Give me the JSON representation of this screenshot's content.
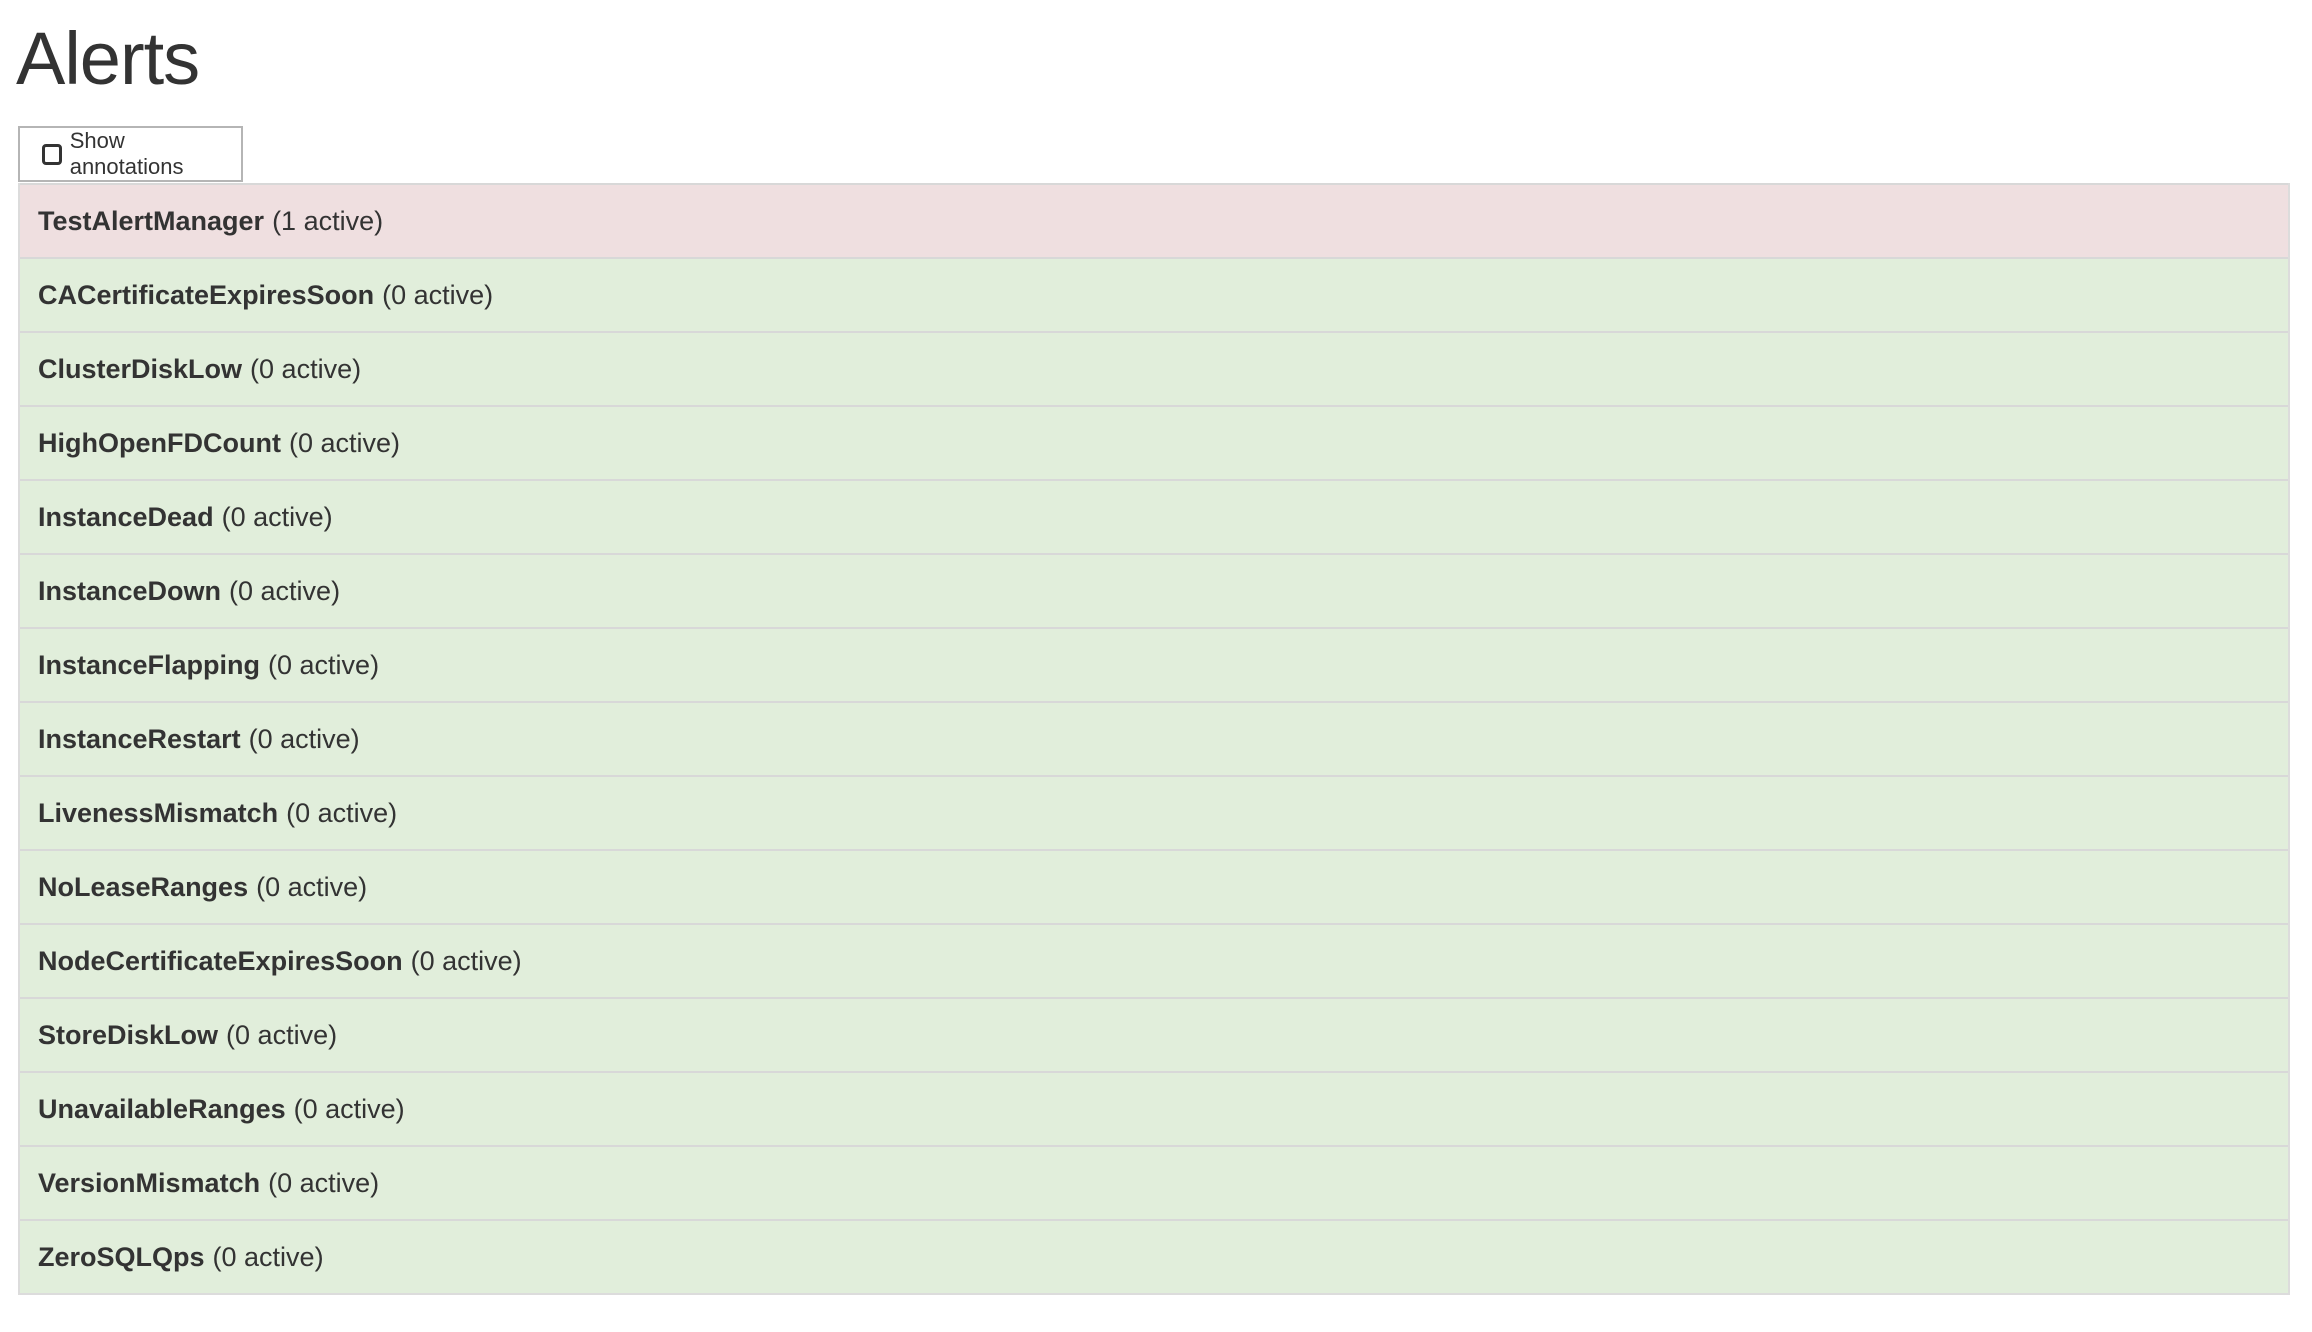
{
  "page_title": "Alerts",
  "show_annotations": {
    "label": "Show annotations",
    "checked": false
  },
  "colors": {
    "firing": "#efdfe0",
    "inactive": "#e1eedb"
  },
  "alerts": [
    {
      "name": "TestAlertManager",
      "count": "(1 active)",
      "state": "firing"
    },
    {
      "name": "CACertificateExpiresSoon",
      "count": "(0 active)",
      "state": "inactive"
    },
    {
      "name": "ClusterDiskLow",
      "count": "(0 active)",
      "state": "inactive"
    },
    {
      "name": "HighOpenFDCount",
      "count": "(0 active)",
      "state": "inactive"
    },
    {
      "name": "InstanceDead",
      "count": "(0 active)",
      "state": "inactive"
    },
    {
      "name": "InstanceDown",
      "count": "(0 active)",
      "state": "inactive"
    },
    {
      "name": "InstanceFlapping",
      "count": "(0 active)",
      "state": "inactive"
    },
    {
      "name": "InstanceRestart",
      "count": "(0 active)",
      "state": "inactive"
    },
    {
      "name": "LivenessMismatch",
      "count": "(0 active)",
      "state": "inactive"
    },
    {
      "name": "NoLeaseRanges",
      "count": "(0 active)",
      "state": "inactive"
    },
    {
      "name": "NodeCertificateExpiresSoon",
      "count": "(0 active)",
      "state": "inactive"
    },
    {
      "name": "StoreDiskLow",
      "count": "(0 active)",
      "state": "inactive"
    },
    {
      "name": "UnavailableRanges",
      "count": "(0 active)",
      "state": "inactive"
    },
    {
      "name": "VersionMismatch",
      "count": "(0 active)",
      "state": "inactive"
    },
    {
      "name": "ZeroSQLQps",
      "count": "(0 active)",
      "state": "inactive"
    }
  ]
}
